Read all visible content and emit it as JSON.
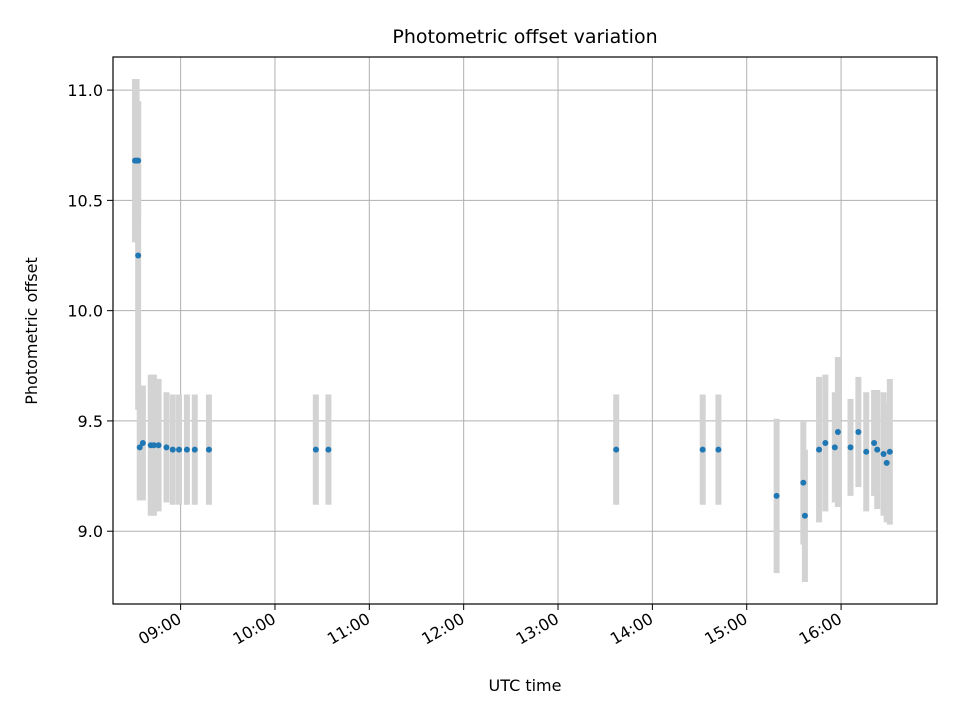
{
  "chart_data": {
    "type": "scatter",
    "title": "Photometric offset variation",
    "xlabel": "UTC time",
    "ylabel": "Photometric offset",
    "x_tick_labels": [
      "09:00",
      "10:00",
      "11:00",
      "12:00",
      "13:00",
      "14:00",
      "15:00",
      "16:00"
    ],
    "y_tick_labels": [
      "9.0",
      "9.5",
      "10.0",
      "10.5",
      "11.0"
    ],
    "y_ticks": [
      9.0,
      9.5,
      10.0,
      10.5,
      11.0
    ],
    "xlim": [
      "08:17",
      "17:01"
    ],
    "ylim": [
      8.67,
      11.15
    ],
    "grid": true,
    "marker_color": "#1f77b4",
    "errorbar_color": "#d3d3d3",
    "points": [
      {
        "x": "08:31",
        "y": 10.68,
        "err": 0.37
      },
      {
        "x": "08:32",
        "y": 10.68,
        "err": 0.37
      },
      {
        "x": "08:33",
        "y": 10.68,
        "err": 0.26
      },
      {
        "x": "08:33",
        "y": 10.25,
        "err": 0.7
      },
      {
        "x": "08:34",
        "y": 9.38,
        "err": 0.24
      },
      {
        "x": "08:36",
        "y": 9.4,
        "err": 0.26
      },
      {
        "x": "08:41",
        "y": 9.39,
        "err": 0.32
      },
      {
        "x": "08:43",
        "y": 9.39,
        "err": 0.32
      },
      {
        "x": "08:46",
        "y": 9.39,
        "err": 0.3
      },
      {
        "x": "08:51",
        "y": 9.38,
        "err": 0.25
      },
      {
        "x": "08:55",
        "y": 9.37,
        "err": 0.25
      },
      {
        "x": "08:59",
        "y": 9.37,
        "err": 0.25
      },
      {
        "x": "09:04",
        "y": 9.37,
        "err": 0.25
      },
      {
        "x": "09:09",
        "y": 9.37,
        "err": 0.25
      },
      {
        "x": "09:18",
        "y": 9.37,
        "err": 0.25
      },
      {
        "x": "10:26",
        "y": 9.37,
        "err": 0.25
      },
      {
        "x": "10:34",
        "y": 9.37,
        "err": 0.25
      },
      {
        "x": "13:37",
        "y": 9.37,
        "err": 0.25
      },
      {
        "x": "14:32",
        "y": 9.37,
        "err": 0.25
      },
      {
        "x": "14:42",
        "y": 9.37,
        "err": 0.25
      },
      {
        "x": "15:19",
        "y": 9.16,
        "err": 0.35
      },
      {
        "x": "15:36",
        "y": 9.22,
        "err": 0.28
      },
      {
        "x": "15:37",
        "y": 9.07,
        "err": 0.3
      },
      {
        "x": "15:46",
        "y": 9.37,
        "err": 0.33
      },
      {
        "x": "15:50",
        "y": 9.4,
        "err": 0.31
      },
      {
        "x": "15:56",
        "y": 9.38,
        "err": 0.25
      },
      {
        "x": "15:58",
        "y": 9.45,
        "err": 0.34
      },
      {
        "x": "16:06",
        "y": 9.38,
        "err": 0.22
      },
      {
        "x": "16:11",
        "y": 9.45,
        "err": 0.25
      },
      {
        "x": "16:16",
        "y": 9.36,
        "err": 0.27
      },
      {
        "x": "16:21",
        "y": 9.4,
        "err": 0.24
      },
      {
        "x": "16:23",
        "y": 9.37,
        "err": 0.27
      },
      {
        "x": "16:27",
        "y": 9.35,
        "err": 0.28
      },
      {
        "x": "16:29",
        "y": 9.31,
        "err": 0.27
      },
      {
        "x": "16:31",
        "y": 9.36,
        "err": 0.33
      }
    ]
  }
}
